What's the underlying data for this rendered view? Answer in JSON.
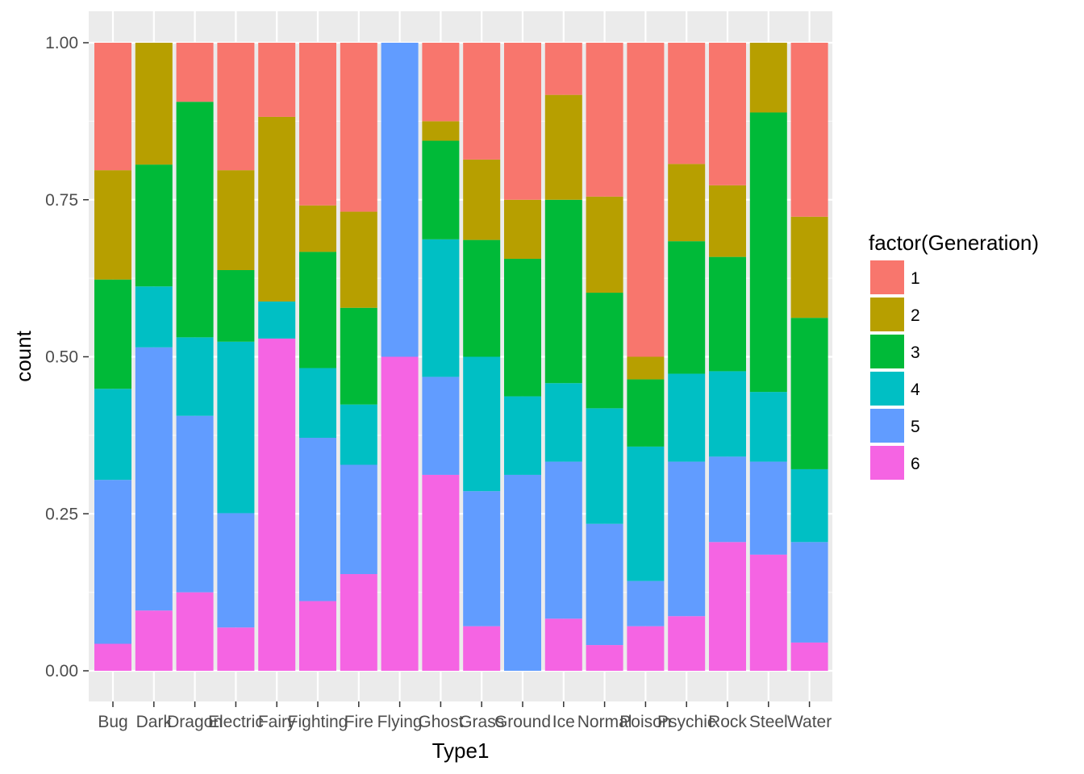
{
  "chart_data": {
    "type": "bar",
    "stacked": true,
    "position": "fill",
    "title": "",
    "xlabel": "Type1",
    "ylabel": "count",
    "ylim": [
      0,
      1
    ],
    "yticks": [
      "0.00",
      "0.25",
      "0.50",
      "0.75",
      "1.00"
    ],
    "ytick_values": [
      0,
      0.25,
      0.5,
      0.75,
      1
    ],
    "grid": true,
    "legend_title": "factor(Generation)",
    "legend_position": "right",
    "categories": [
      "Bug",
      "Dark",
      "Dragon",
      "Electric",
      "Fairy",
      "Fighting",
      "Fire",
      "Flying",
      "Ghost",
      "Grass",
      "Ground",
      "Ice",
      "Normal",
      "Poison",
      "Psychic",
      "Rock",
      "Steel",
      "Water"
    ],
    "series": [
      {
        "name": "1",
        "color": "#F8766D",
        "values": [
          0.203,
          0,
          0.094,
          0.203,
          0.118,
          0.259,
          0.269,
          0,
          0.125,
          0.186,
          0.25,
          0.083,
          0.245,
          0.5,
          0.193,
          0.227,
          0,
          0.277
        ]
      },
      {
        "name": "2",
        "color": "#B79F00",
        "values": [
          0.174,
          0.194,
          0,
          0.159,
          0.294,
          0.074,
          0.153,
          0,
          0.031,
          0.128,
          0.094,
          0.167,
          0.153,
          0.036,
          0.123,
          0.114,
          0.111,
          0.161
        ]
      },
      {
        "name": "3",
        "color": "#00BA38",
        "values": [
          0.174,
          0.194,
          0.375,
          0.114,
          0,
          0.185,
          0.154,
          0,
          0.157,
          0.186,
          0.219,
          0.292,
          0.184,
          0.107,
          0.211,
          0.182,
          0.445,
          0.241
        ]
      },
      {
        "name": "4",
        "color": "#00BFC4",
        "values": [
          0.145,
          0.097,
          0.125,
          0.273,
          0.059,
          0.111,
          0.096,
          0,
          0.219,
          0.214,
          0.125,
          0.125,
          0.184,
          0.214,
          0.14,
          0.136,
          0.111,
          0.116
        ]
      },
      {
        "name": "5",
        "color": "#619CFF",
        "values": [
          0.261,
          0.419,
          0.281,
          0.182,
          0,
          0.26,
          0.174,
          0.5,
          0.156,
          0.215,
          0.312,
          0.25,
          0.193,
          0.072,
          0.246,
          0.136,
          0.148,
          0.16
        ]
      },
      {
        "name": "6",
        "color": "#F564E3",
        "values": [
          0.043,
          0.096,
          0.125,
          0.069,
          0.529,
          0.111,
          0.154,
          0.5,
          0.312,
          0.071,
          0,
          0.083,
          0.041,
          0.071,
          0.087,
          0.205,
          0.185,
          0.045
        ]
      }
    ]
  }
}
